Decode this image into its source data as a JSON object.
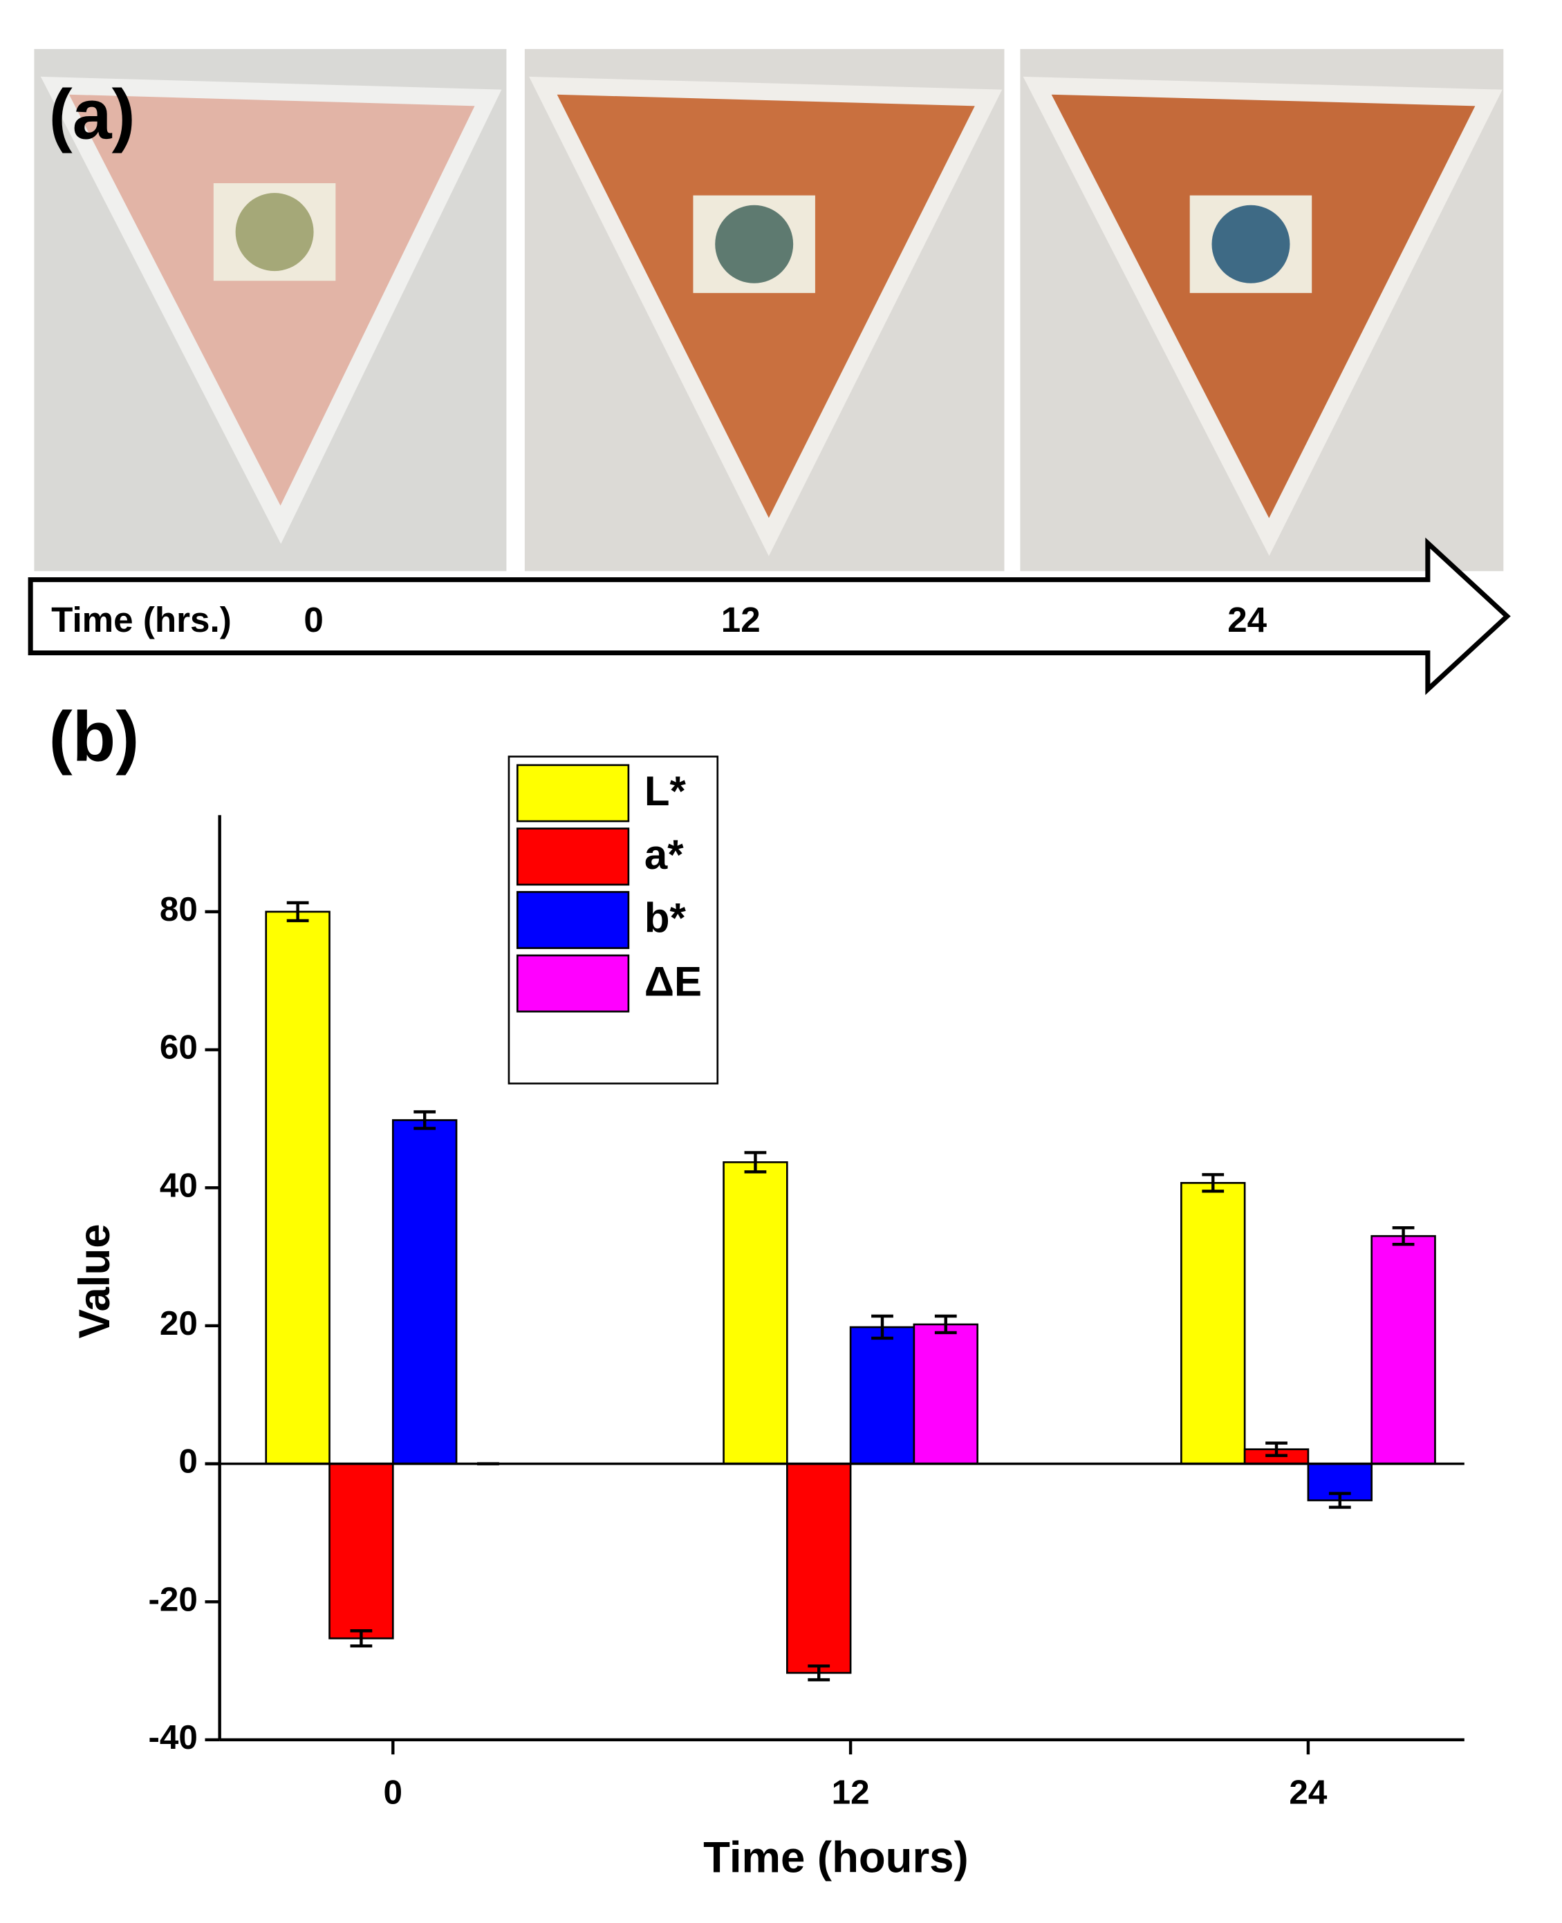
{
  "panel_a": {
    "label": "(a)",
    "axis_label": "Time (hrs.)",
    "times": [
      "0",
      "12",
      "24"
    ]
  },
  "chart_data": {
    "type": "bar",
    "label": "(b)",
    "x_label": "Time (hours)",
    "y_label": "Value",
    "categories": [
      "0",
      "12",
      "24"
    ],
    "series": [
      {
        "name": "L*",
        "color": "#ffff00",
        "values": [
          80,
          43.7,
          40.7
        ],
        "errors": [
          1.3,
          1.4,
          1.2
        ]
      },
      {
        "name": "a*",
        "color": "#ff0000",
        "values": [
          -25.3,
          -30.3,
          2.1
        ],
        "errors": [
          1.1,
          1.0,
          0.9
        ]
      },
      {
        "name": "b*",
        "color": "#0000ff",
        "values": [
          49.8,
          19.8,
          -5.3
        ],
        "errors": [
          1.2,
          1.6,
          1.0
        ]
      },
      {
        "name": "ΔE",
        "color": "#ff00ff",
        "values": [
          0,
          20.2,
          33.0
        ],
        "errors": [
          0,
          1.2,
          1.2
        ]
      }
    ],
    "ylim": [
      -40,
      94
    ],
    "yticks": [
      -40,
      -20,
      0,
      20,
      40,
      60,
      80
    ]
  }
}
